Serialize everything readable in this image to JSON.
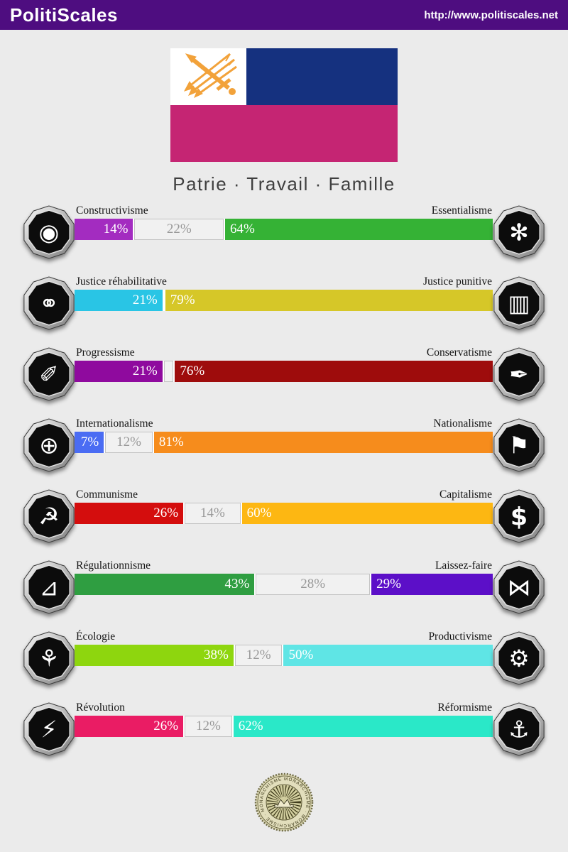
{
  "header": {
    "title": "PolitiScales",
    "url": "http://www.politiscales.net",
    "background": "#4e0d80"
  },
  "flag": {
    "emblem": "crossed-sword-and-arrows",
    "colors": {
      "canton": "#ffffff",
      "top_right": "#15317f",
      "bottom": "#c52573",
      "emblem": "#f2a23a"
    }
  },
  "motto": "Patrie · Travail · Famille",
  "neutral_style": {
    "background": "#f1f1f1",
    "border": "#c4c4c4",
    "text_color": "#999999"
  },
  "axes": [
    {
      "left": {
        "label": "Constructivisme",
        "percent": 14,
        "display": "14%",
        "color": "#a32cc0",
        "icon": "egg-spiral",
        "glyph": "◉"
      },
      "neutral": {
        "percent": 22,
        "display": "22%"
      },
      "right": {
        "label": "Essentialisme",
        "percent": 64,
        "display": "64%",
        "color": "#35b235",
        "icon": "dandelion",
        "glyph": "✻"
      }
    },
    {
      "left": {
        "label": "Justice réhabilitative",
        "percent": 21,
        "display": "21%",
        "color": "#29c5e5",
        "icon": "handshake",
        "glyph": "⚭"
      },
      "neutral": {
        "percent": 0,
        "display": ""
      },
      "right": {
        "label": "Justice punitive",
        "percent": 79,
        "display": "79%",
        "color": "#d6c728",
        "icon": "prison-bars",
        "glyph": "▥"
      }
    },
    {
      "left": {
        "label": "Progressisme",
        "percent": 21,
        "display": "21%",
        "color": "#8f0a9e",
        "icon": "paintbrush",
        "glyph": "✐"
      },
      "neutral": {
        "percent": 3,
        "display": ""
      },
      "right": {
        "label": "Conservatisme",
        "percent": 76,
        "display": "76%",
        "color": "#9e0c0c",
        "icon": "fountain-pen",
        "glyph": "✒"
      }
    },
    {
      "left": {
        "label": "Internationalisme",
        "percent": 7,
        "display": "7%",
        "color": "#4a6cf3",
        "icon": "globe-laurel",
        "glyph": "⊕"
      },
      "neutral": {
        "percent": 12,
        "display": "12%"
      },
      "right": {
        "label": "Nationalisme",
        "percent": 81,
        "display": "81%",
        "color": "#f68c1c",
        "icon": "flag",
        "glyph": "⚑"
      }
    },
    {
      "left": {
        "label": "Communisme",
        "percent": 26,
        "display": "26%",
        "color": "#d40d0d",
        "icon": "hammer-sickle",
        "glyph": "☭"
      },
      "neutral": {
        "percent": 14,
        "display": "14%"
      },
      "right": {
        "label": "Capitalisme",
        "percent": 60,
        "display": "60%",
        "color": "#fdb712",
        "icon": "money-bag",
        "glyph": "$"
      }
    },
    {
      "left": {
        "label": "Régulationnisme",
        "percent": 43,
        "display": "43%",
        "color": "#2f9e41",
        "icon": "ruler-shapes",
        "glyph": "⊿"
      },
      "neutral": {
        "percent": 28,
        "display": "28%"
      },
      "right": {
        "label": "Laissez-faire",
        "percent": 29,
        "display": "29%",
        "color": "#5c0fc8",
        "icon": "butterfly",
        "glyph": "⋈"
      }
    },
    {
      "left": {
        "label": "Écologie",
        "percent": 38,
        "display": "38%",
        "color": "#8ed60e",
        "icon": "plant",
        "glyph": "⚘"
      },
      "neutral": {
        "percent": 12,
        "display": "12%"
      },
      "right": {
        "label": "Productivisme",
        "percent": 50,
        "display": "50%",
        "color": "#5fe5e5",
        "icon": "gears",
        "glyph": "⚙"
      }
    },
    {
      "left": {
        "label": "Révolution",
        "percent": 26,
        "display": "26%",
        "color": "#ea1c64",
        "icon": "uprising",
        "glyph": "⚡"
      },
      "neutral": {
        "percent": 12,
        "display": "12%"
      },
      "right": {
        "label": "Réformisme",
        "percent": 62,
        "display": "62%",
        "color": "#2ae8c8",
        "icon": "harbor-boat",
        "glyph": "⚓"
      }
    }
  ],
  "seal": {
    "label": "MONARCHISME",
    "ring_text": "MONARCHISME · MONARCHISME · MONARCHISME"
  }
}
